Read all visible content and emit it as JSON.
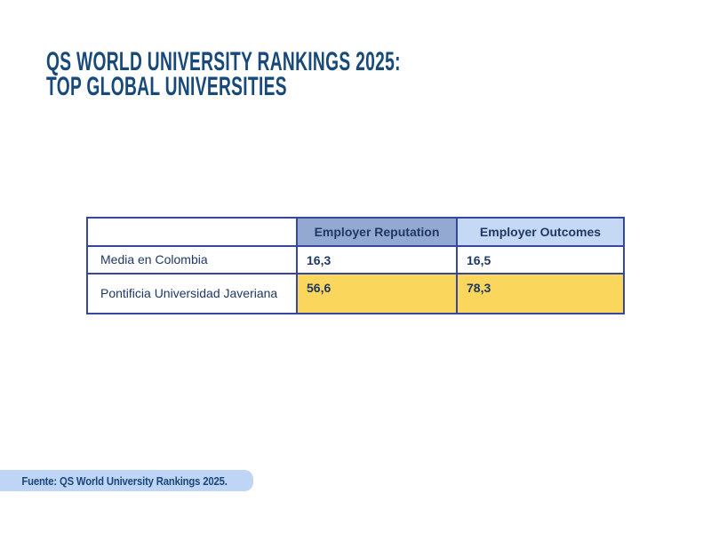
{
  "title": {
    "line1": "QS WORLD UNIVERSITY RANKINGS 2025:",
    "line2": "TOP GLOBAL UNIVERSITIES"
  },
  "table": {
    "columns": [
      "",
      "Employer Reputation",
      "Employer Outcomes"
    ],
    "rows": [
      {
        "label": "Media en Colombia",
        "values": [
          "16,3",
          "16,5"
        ],
        "highlight": false
      },
      {
        "label": "Pontificia Universidad Javeriana",
        "values": [
          "56,6",
          "78,3"
        ],
        "highlight": true
      }
    ]
  },
  "footer": {
    "source_label": "Fuente: QS World University Rankings 2025."
  },
  "colors": {
    "title_navy": "#17497B",
    "table_border_blue": "#3647A0",
    "table_text_navy": "#1F3864",
    "header_medium_blue": "#93A9D2",
    "header_light_blue": "#C6D9F4",
    "highlight_yellow": "#FBD65C",
    "footer_bar_blue": "#BFD5F6",
    "background": "#FFFFFF"
  },
  "chart_data": {
    "type": "table",
    "title": "QS World University Rankings 2025: Top Global Universities",
    "columns": [
      "",
      "Employer Reputation",
      "Employer Outcomes"
    ],
    "rows": [
      [
        "Media en Colombia",
        "16,3",
        "16,5"
      ],
      [
        "Pontificia Universidad Javeriana",
        "56,6",
        "78,3"
      ]
    ],
    "highlighted_row": "Pontificia Universidad Javeriana",
    "source": "Fuente: QS World University Rankings 2025."
  }
}
